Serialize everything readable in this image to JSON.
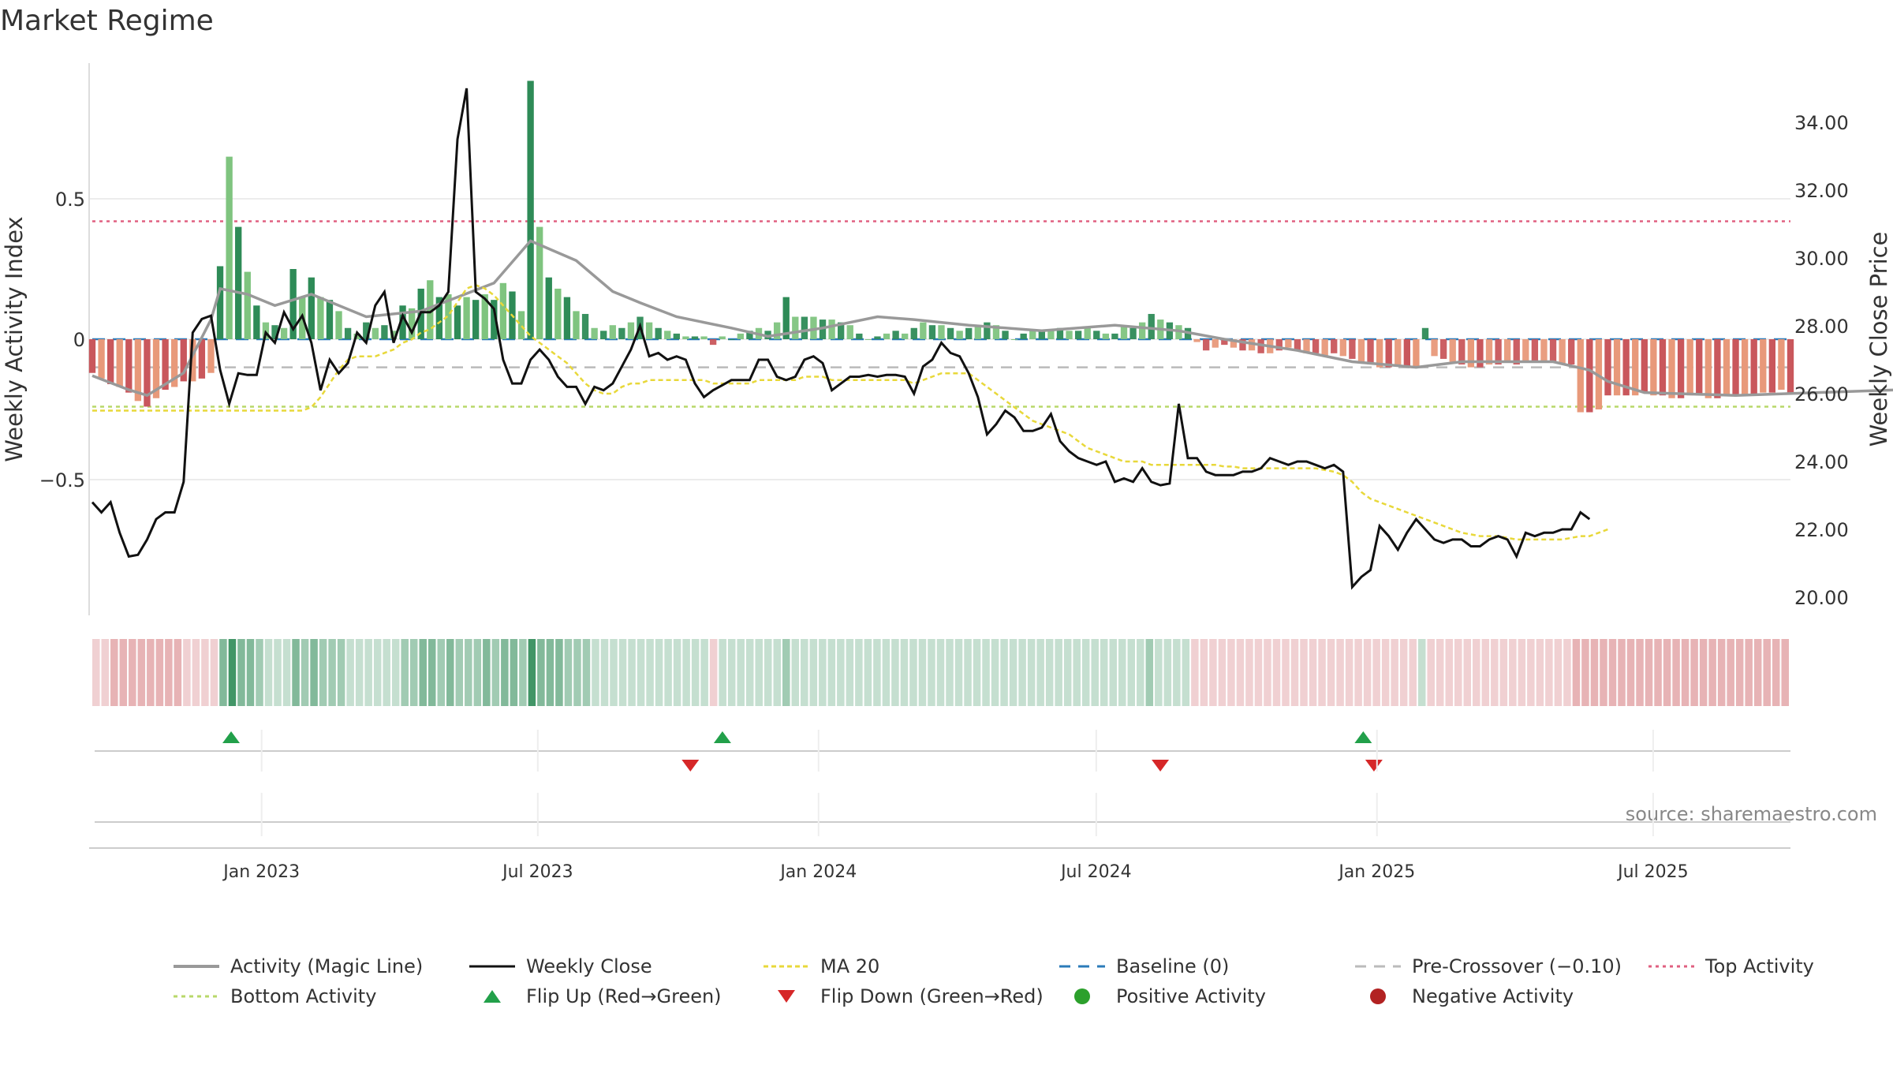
{
  "title": "Market Regime",
  "source_note": "source: sharemaestro.com",
  "colors": {
    "pos_dark": "#2e8b57",
    "pos_light": "#7fc47f",
    "neg_dark": "#c9575c",
    "neg_light": "#e8997a",
    "activity_line": "#999999",
    "close_line": "#111111",
    "ma_line": "#e8d83a",
    "baseline": "#2b7bb9",
    "pre_crossover": "#bbbbbb",
    "top_line": "#e06080",
    "bottom_line": "#b8d86a",
    "flip_up": "#22a04a",
    "flip_down": "#d62728",
    "pos_dot": "#2ca02c",
    "neg_dot": "#b22222"
  },
  "chart_data": {
    "type": "bar",
    "xaxis": {
      "start": "2022-09-12",
      "end": "2025-09-29",
      "tick_labels": [
        "Jan 2023",
        "Jul 2023",
        "Jan 2024",
        "Jul 2024",
        "Jan 2025",
        "Jul 2025"
      ],
      "tick_dates": [
        "2023-01-01",
        "2023-07-01",
        "2024-01-01",
        "2024-07-01",
        "2025-01-01",
        "2025-07-01"
      ]
    },
    "left_axis": {
      "label": "Weekly Activity Index",
      "ylim": [
        -0.98,
        0.98
      ],
      "ticks": [
        0.5,
        0,
        -0.5
      ],
      "tick_labels": [
        "0.5",
        "0",
        "−0.5"
      ]
    },
    "right_axis": {
      "label": "Weekly Close Price",
      "ylim": [
        19.5,
        35.8
      ],
      "ticks": [
        20,
        22,
        24,
        26,
        28,
        30,
        32,
        34
      ],
      "tick_labels": [
        "20.00",
        "22.00",
        "24.00",
        "26.00",
        "28.00",
        "30.00",
        "32.00",
        "34.00"
      ]
    },
    "reference_lines": {
      "top_activity": 0.42,
      "bottom_activity": -0.24,
      "pre_crossover": -0.1,
      "baseline": 0
    },
    "activity_points": [
      [
        0,
        -0.13
      ],
      [
        4,
        -0.18
      ],
      [
        6,
        -0.2
      ],
      [
        10,
        -0.12
      ],
      [
        13,
        0.07
      ],
      [
        14,
        0.18
      ],
      [
        17,
        0.16
      ],
      [
        20,
        0.12
      ],
      [
        24,
        0.16
      ],
      [
        30,
        0.08
      ],
      [
        36,
        0.1
      ],
      [
        40,
        0.15
      ],
      [
        44,
        0.2
      ],
      [
        48,
        0.35
      ],
      [
        53,
        0.28
      ],
      [
        57,
        0.17
      ],
      [
        60,
        0.13
      ],
      [
        64,
        0.08
      ],
      [
        70,
        0.04
      ],
      [
        74,
        0.01
      ],
      [
        80,
        0.04
      ],
      [
        86,
        0.08
      ],
      [
        90,
        0.07
      ],
      [
        96,
        0.05
      ],
      [
        104,
        0.03
      ],
      [
        112,
        0.05
      ],
      [
        119,
        0.03
      ],
      [
        124,
        0.0
      ],
      [
        128,
        -0.02
      ],
      [
        132,
        -0.04
      ],
      [
        138,
        -0.08
      ],
      [
        145,
        -0.1
      ],
      [
        150,
        -0.08
      ],
      [
        155,
        -0.08
      ],
      [
        160,
        -0.08
      ],
      [
        164,
        -0.11
      ],
      [
        166,
        -0.15
      ],
      [
        170,
        -0.19
      ],
      [
        180,
        -0.2
      ],
      [
        198,
        -0.18
      ]
    ],
    "series": [
      {
        "name": "Weekly Activity Index",
        "values": [
          -0.12,
          -0.14,
          -0.16,
          -0.17,
          -0.19,
          -0.22,
          -0.24,
          -0.21,
          -0.18,
          -0.17,
          -0.15,
          -0.15,
          -0.14,
          -0.12,
          0.26,
          0.65,
          0.4,
          0.24,
          0.12,
          0.06,
          0.05,
          0.04,
          0.25,
          0.15,
          0.22,
          0.15,
          0.14,
          0.1,
          0.04,
          0.02,
          0.06,
          0.04,
          0.05,
          0.03,
          0.12,
          0.11,
          0.18,
          0.21,
          0.15,
          0.16,
          0.12,
          0.15,
          0.14,
          0.16,
          0.14,
          0.2,
          0.17,
          0.1,
          0.92,
          0.4,
          0.22,
          0.18,
          0.15,
          0.1,
          0.09,
          0.04,
          0.03,
          0.05,
          0.04,
          0.06,
          0.08,
          0.06,
          0.04,
          0.03,
          0.02,
          0.01,
          0.01,
          0.01,
          -0.02,
          0.01,
          0.0,
          0.02,
          0.03,
          0.04,
          0.03,
          0.06,
          0.15,
          0.08,
          0.08,
          0.08,
          0.07,
          0.07,
          0.06,
          0.05,
          0.02,
          0.0,
          0.01,
          0.02,
          0.03,
          0.02,
          0.04,
          0.06,
          0.05,
          0.05,
          0.04,
          0.03,
          0.04,
          0.05,
          0.06,
          0.05,
          0.03,
          0.0,
          0.02,
          0.03,
          0.03,
          0.03,
          0.04,
          0.03,
          0.03,
          0.04,
          0.03,
          0.02,
          0.02,
          0.05,
          0.04,
          0.06,
          0.09,
          0.07,
          0.06,
          0.05,
          0.04,
          -0.01,
          -0.04,
          -0.03,
          -0.02,
          -0.03,
          -0.04,
          -0.04,
          -0.05,
          -0.05,
          -0.04,
          -0.03,
          -0.04,
          -0.05,
          -0.05,
          -0.06,
          -0.05,
          -0.06,
          -0.07,
          -0.08,
          -0.09,
          -0.1,
          -0.1,
          -0.09,
          -0.1,
          -0.1,
          0.04,
          -0.06,
          -0.07,
          -0.08,
          -0.09,
          -0.1,
          -0.1,
          -0.09,
          -0.09,
          -0.08,
          -0.09,
          -0.08,
          -0.08,
          -0.08,
          -0.08,
          -0.09,
          -0.09,
          -0.26,
          -0.26,
          -0.25,
          -0.2,
          -0.2,
          -0.2,
          -0.2,
          -0.19,
          -0.2,
          -0.2,
          -0.21,
          -0.21,
          -0.2,
          -0.2,
          -0.21,
          -0.21,
          -0.2,
          -0.2,
          -0.2,
          -0.2,
          -0.19,
          -0.19,
          -0.18,
          -0.19
        ]
      },
      {
        "name": "Weekly Close",
        "values": [
          22.8,
          22.5,
          22.8,
          21.9,
          21.2,
          21.25,
          21.7,
          22.3,
          22.5,
          22.5,
          23.4,
          27.8,
          28.2,
          28.3,
          26.7,
          25.7,
          26.6,
          26.55,
          26.55,
          27.8,
          27.5,
          28.4,
          27.9,
          28.3,
          27.5,
          26.1,
          27.0,
          26.6,
          26.9,
          27.8,
          27.5,
          28.6,
          29.0,
          27.5,
          28.3,
          27.8,
          28.4,
          28.4,
          28.6,
          29.0,
          33.5,
          35.0,
          29.0,
          28.8,
          28.5,
          27.0,
          26.3,
          26.3,
          27.0,
          27.3,
          27.0,
          26.5,
          26.2,
          26.2,
          25.7,
          26.2,
          26.1,
          26.3,
          26.8,
          27.3,
          28.0,
          27.1,
          27.2,
          27.0,
          27.1,
          27.0,
          26.3,
          25.9,
          26.1,
          26.25,
          26.4,
          26.4,
          26.4,
          27.0,
          27.0,
          26.5,
          26.4,
          26.5,
          27.0,
          27.1,
          26.9,
          26.1,
          26.3,
          26.5,
          26.5,
          26.55,
          26.5,
          26.55,
          26.55,
          26.5,
          26.0,
          26.8,
          27.0,
          27.5,
          27.2,
          27.1,
          26.6,
          25.9,
          24.8,
          25.1,
          25.5,
          25.3,
          24.9,
          24.9,
          25.0,
          25.4,
          24.6,
          24.3,
          24.1,
          24.0,
          23.9,
          24.0,
          23.4,
          23.5,
          23.4,
          23.8,
          23.4,
          23.3,
          23.35,
          25.7,
          24.1,
          24.1,
          23.7,
          23.6,
          23.6,
          23.6,
          23.7,
          23.7,
          23.8,
          24.1,
          24.0,
          23.9,
          24.0,
          24.0,
          23.9,
          23.8,
          23.9,
          23.7,
          20.3,
          20.6,
          20.8,
          22.1,
          21.8,
          21.4,
          21.9,
          22.3,
          22.0,
          21.7,
          21.6,
          21.7,
          21.7,
          21.5,
          21.5,
          21.7,
          21.8,
          21.7,
          21.2,
          21.9,
          21.8,
          21.9,
          21.9,
          22.0,
          22.0,
          22.5,
          22.3
        ]
      },
      {
        "name": "MA 20",
        "values": [
          25.5,
          25.5,
          25.5,
          25.5,
          25.5,
          25.5,
          25.5,
          25.5,
          25.5,
          25.5,
          25.5,
          25.5,
          25.5,
          25.5,
          25.5,
          25.5,
          25.5,
          25.5,
          25.5,
          25.5,
          25.5,
          25.5,
          25.5,
          25.5,
          25.6,
          25.9,
          26.3,
          26.7,
          27.0,
          27.1,
          27.1,
          27.1,
          27.2,
          27.3,
          27.5,
          27.6,
          27.8,
          27.9,
          28.1,
          28.3,
          28.7,
          29.1,
          29.2,
          29.1,
          28.9,
          28.6,
          28.3,
          28.0,
          27.7,
          27.5,
          27.3,
          27.1,
          26.9,
          26.6,
          26.3,
          26.1,
          26.0,
          26.0,
          26.2,
          26.3,
          26.3,
          26.4,
          26.4,
          26.4,
          26.4,
          26.4,
          26.4,
          26.4,
          26.3,
          26.3,
          26.3,
          26.3,
          26.3,
          26.4,
          26.4,
          26.4,
          26.4,
          26.4,
          26.5,
          26.5,
          26.5,
          26.4,
          26.4,
          26.4,
          26.4,
          26.4,
          26.4,
          26.4,
          26.4,
          26.4,
          26.3,
          26.4,
          26.5,
          26.6,
          26.6,
          26.6,
          26.6,
          26.4,
          26.2,
          26.0,
          25.8,
          25.6,
          25.4,
          25.2,
          25.1,
          25.0,
          24.9,
          24.8,
          24.6,
          24.4,
          24.3,
          24.2,
          24.1,
          24.0,
          24.0,
          24.0,
          23.9,
          23.9,
          23.9,
          23.9,
          23.9,
          23.9,
          23.9,
          23.9,
          23.85,
          23.85,
          23.8,
          23.8,
          23.8,
          23.8,
          23.8,
          23.8,
          23.8,
          23.8,
          23.8,
          23.75,
          23.7,
          23.6,
          23.4,
          23.1,
          22.9,
          22.8,
          22.7,
          22.6,
          22.5,
          22.4,
          22.3,
          22.2,
          22.1,
          22.0,
          21.9,
          21.85,
          21.8,
          21.8,
          21.8,
          21.75,
          21.7,
          21.7,
          21.7,
          21.7,
          21.7,
          21.7,
          21.75,
          21.8,
          21.8,
          21.9,
          22.0
        ]
      }
    ],
    "flip_up_dates": [
      "2022-12-12",
      "2023-10-30",
      "2024-12-23"
    ],
    "flip_down_dates": [
      "2023-10-09",
      "2024-08-12",
      "2024-12-30"
    ],
    "legend": {
      "placement": "bottom",
      "entries": [
        "Activity (Magic Line)",
        "Weekly Close",
        "MA 20",
        "Baseline (0)",
        "Pre-Crossover (−0.10)",
        "Top Activity",
        "Bottom Activity",
        "Flip Up (Red→Green)",
        "Flip Down (Green→Red)",
        "Positive Activity",
        "Negative Activity"
      ]
    }
  }
}
